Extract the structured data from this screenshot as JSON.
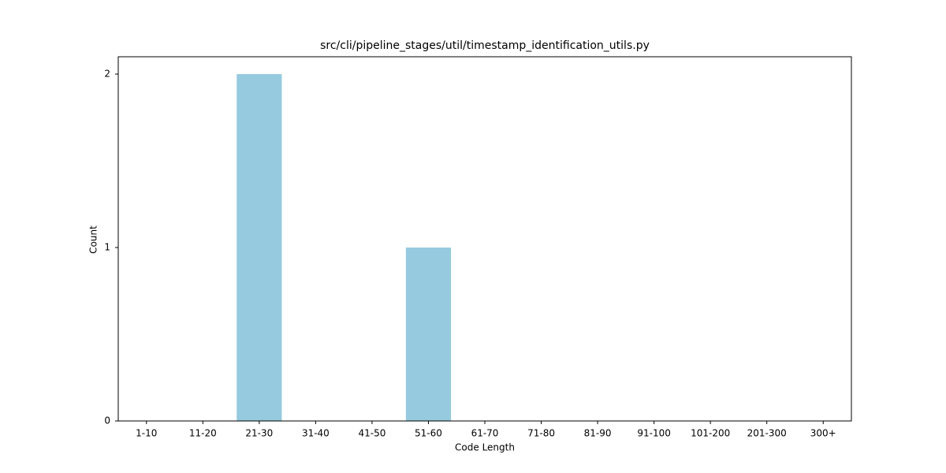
{
  "chart_data": {
    "type": "bar",
    "title": "src/cli/pipeline_stages/util/timestamp_identification_utils.py",
    "x_label": "Code Length",
    "y_label": "Count",
    "categories": [
      "1-10",
      "11-20",
      "21-30",
      "31-40",
      "41-50",
      "51-60",
      "61-70",
      "71-80",
      "81-90",
      "91-100",
      "101-200",
      "201-300",
      "300+"
    ],
    "values": [
      0,
      0,
      2,
      0,
      0,
      1,
      0,
      0,
      0,
      0,
      0,
      0,
      0
    ],
    "color": "#96cade",
    "ylim": [
      0,
      2.1
    ],
    "yticks": [
      0,
      1,
      2
    ],
    "grid": false
  }
}
